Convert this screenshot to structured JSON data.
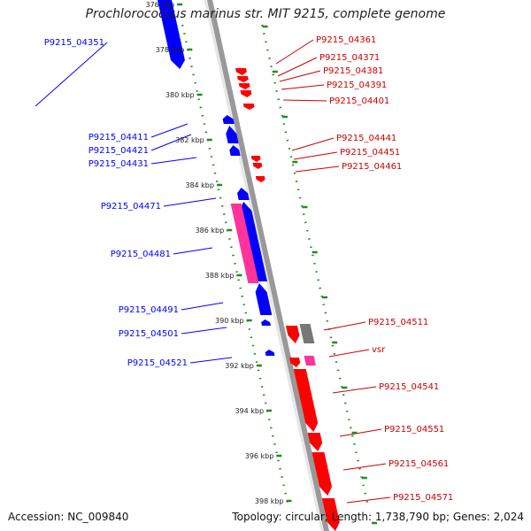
{
  "title": "Prochlorococcus marinus str. MIT 9215, complete genome",
  "footer": {
    "accession": "Accession: NC_009840",
    "summary": "Topology: circular; Length: 1,738,790 bp; Genes: 2,024"
  },
  "colors": {
    "forward_cds": "#ff0000",
    "reverse_cds": "#0000ff",
    "rna": "#ff3399",
    "pseudo": "#777777",
    "axis": "#999999",
    "ruler": "#228b22"
  },
  "ticks": [
    "376 kbp",
    "378 kbp",
    "380 kbp",
    "382 kbp",
    "384 kbp",
    "386 kbp",
    "388 kbp",
    "390 kbp",
    "392 kbp",
    "394 kbp",
    "396 kbp",
    "398 kbp"
  ],
  "left_labels": [
    "P9215_04351",
    "P9215_04411",
    "P9215_04421",
    "P9215_04431",
    "P9215_04471",
    "P9215_04481",
    "P9215_04491",
    "P9215_04501",
    "P9215_04521"
  ],
  "right_labels": [
    "P9215_04361",
    "P9215_04371",
    "P9215_04381",
    "P9215_04391",
    "P9215_04401",
    "P9215_04441",
    "P9215_04451",
    "P9215_04461",
    "P9215_04511",
    "vsr",
    "P9215_04541",
    "P9215_04551",
    "P9215_04561",
    "P9215_04571"
  ]
}
